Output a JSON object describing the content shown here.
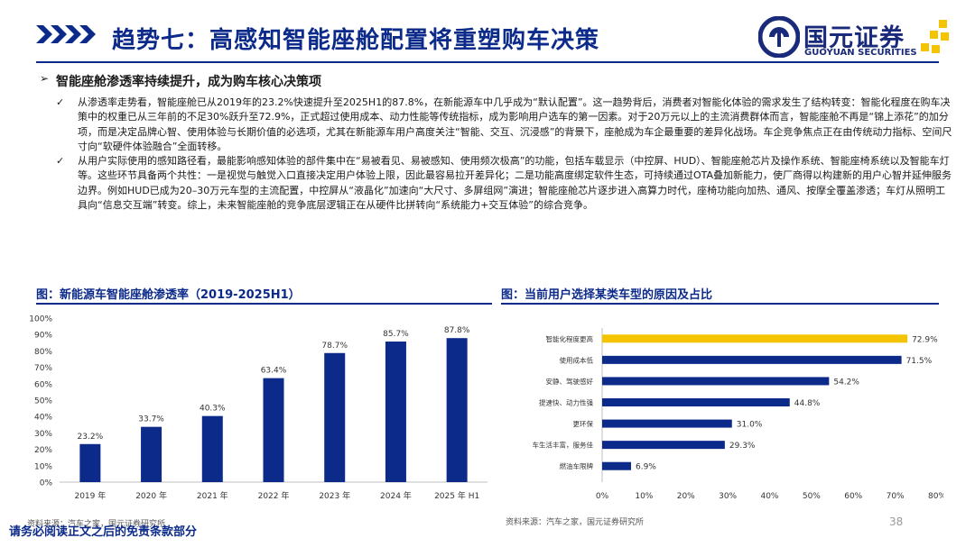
{
  "header": {
    "title": "趋势七：高感知智能座舱配置将重塑购车决策",
    "logo_cn": "国元证券",
    "logo_en": "GUOYUAN SECURITIES",
    "brand_color": "#0b2a8a",
    "accent_color": "#f5c400"
  },
  "section": {
    "arrow": "➢",
    "heading": "智能座舱渗透率持续提升，成为购车核心决策项"
  },
  "bullets": [
    {
      "mark": "✓",
      "text": "从渗透率走势看，智能座舱已从2019年的23.2%快速提升至2025H1的87.8%，在新能源车中几乎成为“默认配置”。这一趋势背后，消费者对智能化体验的需求发生了结构转变：智能化程度在购车决策中的权重已从三年前的不足30%跃升至72.9%，正式超过使用成本、动力性能等传统指标，成为影响用户选车的第一因素。对于20万元以上的主流消费群体而言，智能座舱不再是“锦上添花”的加分项，而是决定品牌心智、使用体验与长期价值的必选项，尤其在新能源车用户高度关注“智能、交互、沉浸感”的背景下，座舱成为车企最重要的差异化战场。车企竞争焦点正在由传统动力指标、空间尺寸向“软硬件体验融合”全面转移。"
    },
    {
      "mark": "✓",
      "text": "从用户实际使用的感知路径看，最能影响感知体验的部件集中在“易被看见、易被感知、使用频次极高”的功能，包括车载显示（中控屏、HUD）、智能座舱芯片及操作系统、智能座椅系统以及智能车灯等。这些环节具备两个共性：一是视觉与触觉入口直接决定用户体验上限，因此最容易拉开差异化；二是功能高度绑定软件生态，可持续通过OTA叠加新能力，使厂商得以构建新的用户心智并延伸服务边界。例如HUD已成为20–30万元车型的主流配置，中控屏从“液晶化”加速向“大尺寸、多屏组网”演进；智能座舱芯片逐步进入高算力时代，座椅功能向加热、通风、按摩全覆盖渗透；车灯从照明工具向“信息交互端”转变。综上，未来智能座舱的竞争底层逻辑正在从硬件比拼转向“系统能力+交互体验”的综合竞争。"
    }
  ],
  "chart_left": {
    "caption": "图：新能源车智能座舱渗透率（2019-2025H1）",
    "source": "资料来源：汽车之家，国元证券研究所"
  },
  "chart_right": {
    "caption": "图：当前用户选择某类车型的原因及占比",
    "source": "资料来源：汽车之家，国元证券研究所"
  },
  "chart_data": [
    {
      "type": "bar",
      "title": "新能源车智能座舱渗透率（2019-2025H1）",
      "categories": [
        "2019 年",
        "2020 年",
        "2021 年",
        "2022 年",
        "2023 年",
        "2024 年",
        "2025 年 H1"
      ],
      "values": [
        23.2,
        33.7,
        40.3,
        63.4,
        78.7,
        85.7,
        87.8
      ],
      "labels": [
        "23.2%",
        "33.7%",
        "40.3%",
        "63.4%",
        "78.7%",
        "85.7%",
        "87.8%"
      ],
      "ylim": [
        0,
        100
      ],
      "yticks": [
        "0%",
        "10%",
        "20%",
        "30%",
        "40%",
        "50%",
        "60%",
        "70%",
        "80%",
        "90%",
        "100%"
      ],
      "color": "#0b2a8a"
    },
    {
      "type": "bar",
      "orientation": "horizontal",
      "title": "当前用户选择某类车型的原因及占比",
      "categories": [
        "智能化程度更高",
        "使用成本低",
        "安静、驾驶感好",
        "提速快、动力性强",
        "更环保",
        "车生活丰富，服务佳",
        "燃油车限牌"
      ],
      "values": [
        72.9,
        71.5,
        54.2,
        44.8,
        31.0,
        29.3,
        6.9
      ],
      "labels": [
        "72.9%",
        "71.5%",
        "54.2%",
        "44.8%",
        "31.0%",
        "29.3%",
        "6.9%"
      ],
      "xlim": [
        0,
        80
      ],
      "xticks": [
        "0%",
        "10%",
        "20%",
        "30%",
        "40%",
        "50%",
        "60%",
        "70%",
        "80%"
      ],
      "color": "#0b2a8a",
      "highlight_color": "#f5c400"
    }
  ],
  "footer": {
    "disclaimer": "请务必阅读正文之后的免责条款部分",
    "page": "38"
  }
}
